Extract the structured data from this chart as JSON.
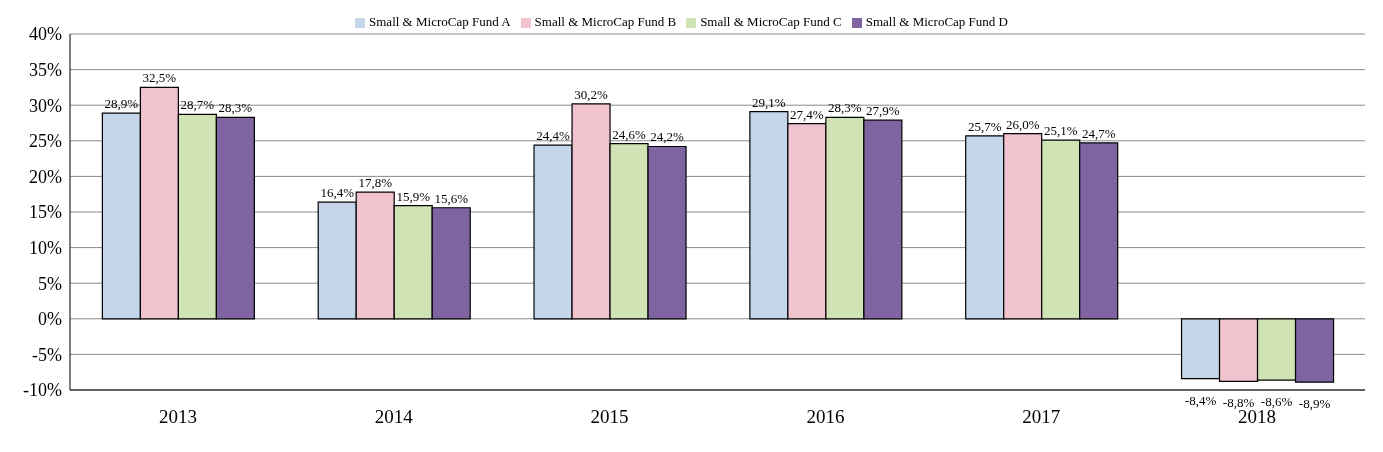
{
  "chart_data": {
    "type": "bar",
    "categories": [
      "2013",
      "2014",
      "2015",
      "2016",
      "2017",
      "2018"
    ],
    "series": [
      {
        "name": "Small & MicroCap Fund A",
        "color": "#c5d6ea",
        "values": [
          28.9,
          16.4,
          24.4,
          29.1,
          25.7,
          -8.4
        ],
        "value_labels": [
          "28,9%",
          "16,4%",
          "24,4%",
          "29,1%",
          "25,7%",
          "-8,4%"
        ]
      },
      {
        "name": "Small & MicroCap Fund B",
        "color": "#f0c3ce",
        "values": [
          32.5,
          17.8,
          30.2,
          27.4,
          26.0,
          -8.8
        ],
        "value_labels": [
          "32,5%",
          "17,8%",
          "30,2%",
          "27,4%",
          "26,0%",
          "-8,8%"
        ]
      },
      {
        "name": "Small & MicroCap Fund C",
        "color": "#d0e3b4",
        "values": [
          28.7,
          15.9,
          24.6,
          28.3,
          25.1,
          -8.6
        ],
        "value_labels": [
          "28,7%",
          "15,9%",
          "24,6%",
          "28,3%",
          "25,1%",
          "-8,6%"
        ]
      },
      {
        "name": "Small & MicroCap Fund D",
        "color": "#8064a2",
        "values": [
          28.3,
          15.6,
          24.2,
          27.9,
          24.7,
          -8.9
        ],
        "value_labels": [
          "28,3%",
          "15,6%",
          "24,2%",
          "27,9%",
          "24,7%",
          "-8,9%"
        ]
      }
    ],
    "ylim": [
      -10,
      40
    ],
    "yticks": [
      {
        "value": -10,
        "label": "-10%"
      },
      {
        "value": -5,
        "label": "-5%"
      },
      {
        "value": 0,
        "label": "0%"
      },
      {
        "value": 5,
        "label": "5%"
      },
      {
        "value": 10,
        "label": "10%"
      },
      {
        "value": 15,
        "label": "15%"
      },
      {
        "value": 20,
        "label": "20%"
      },
      {
        "value": 25,
        "label": "25%"
      },
      {
        "value": 30,
        "label": "30%"
      },
      {
        "value": 35,
        "label": "35%"
      },
      {
        "value": 40,
        "label": "40%"
      }
    ],
    "grid": "y",
    "legend": "top"
  }
}
